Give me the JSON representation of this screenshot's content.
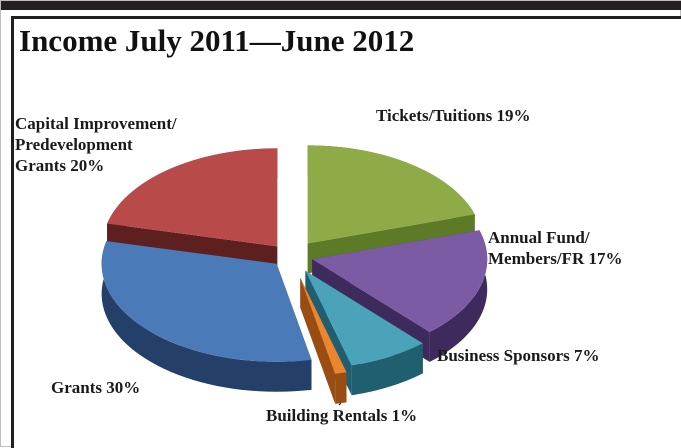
{
  "chart_data": {
    "type": "pie",
    "title": "Income July 2011—June 2012",
    "slices": [
      {
        "label_lines": [
          "Tickets/Tuitions  19%"
        ],
        "value": 19,
        "color": "#8fab48",
        "side": "#5d7a26"
      },
      {
        "label_lines": [
          "Annual Fund/",
          "Members/FR  17%"
        ],
        "value": 17,
        "color": "#7b5ba3",
        "side": "#3f2a5e"
      },
      {
        "label_lines": [
          "Business Sponsors  7%"
        ],
        "value": 7,
        "color": "#4aa3b9",
        "side": "#1f5f70"
      },
      {
        "label_lines": [
          "Building Rentals 1%"
        ],
        "value": 1,
        "color": "#e9862f",
        "side": "#9a4d12"
      },
      {
        "label_lines": [
          "Grants  30%"
        ],
        "value": 30,
        "color": "#4a7ab8",
        "side": "#243f68"
      },
      {
        "label_lines": [
          "Capital Improvement/",
          "Predevelopment",
          "Grants 20%"
        ],
        "value": 20,
        "color": "#b84a4a",
        "side": "#5e1f1f"
      }
    ]
  }
}
